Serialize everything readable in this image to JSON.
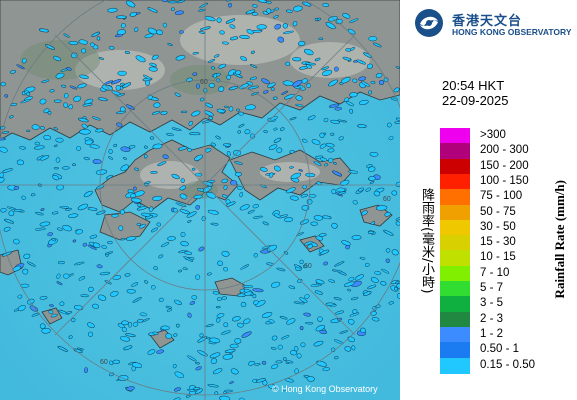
{
  "organization": {
    "name_cn": "香港天文台",
    "name_en": "HONG KONG OBSERVATORY"
  },
  "timestamp": {
    "time": "20:54 HKT",
    "date": "22-09-2025"
  },
  "legend": {
    "label_cn": "降雨率(毫米/小時)",
    "label_en": "Rainfall Rate (mm/h)",
    "items": [
      {
        "range": ">300",
        "color": "#ee00ee"
      },
      {
        "range": "200 - 300",
        "color": "#b0007a"
      },
      {
        "range": "150 - 200",
        "color": "#cc0000"
      },
      {
        "range": "100 - 150",
        "color": "#ff2000"
      },
      {
        "range": "75 - 100",
        "color": "#ff7000"
      },
      {
        "range": "50 - 75",
        "color": "#f0a000"
      },
      {
        "range": "30 - 50",
        "color": "#f0c800"
      },
      {
        "range": "15 - 30",
        "color": "#d8d000"
      },
      {
        "range": "10 - 15",
        "color": "#c0e000"
      },
      {
        "range": "7 - 10",
        "color": "#80f000"
      },
      {
        "range": "5 - 7",
        "color": "#30dd30"
      },
      {
        "range": "3 - 5",
        "color": "#10b040"
      },
      {
        "range": "2 - 3",
        "color": "#208840"
      },
      {
        "range": "1 - 2",
        "color": "#3c8cff"
      },
      {
        "range": "0.50 - 1",
        "color": "#1a7cf0"
      },
      {
        "range": "0.15 - 0.50",
        "color": "#20c8ff"
      }
    ]
  },
  "map": {
    "range_rings": [
      "60",
      "60",
      "60",
      "60"
    ],
    "copyright": "© Hong Kong Observatory",
    "colors": {
      "sea": "#45c0e0",
      "land": "#8c9490",
      "echo": "#20c8ff",
      "echo_outline": "#0a3a55"
    }
  },
  "icons": [
    "hko-logo-icon"
  ]
}
